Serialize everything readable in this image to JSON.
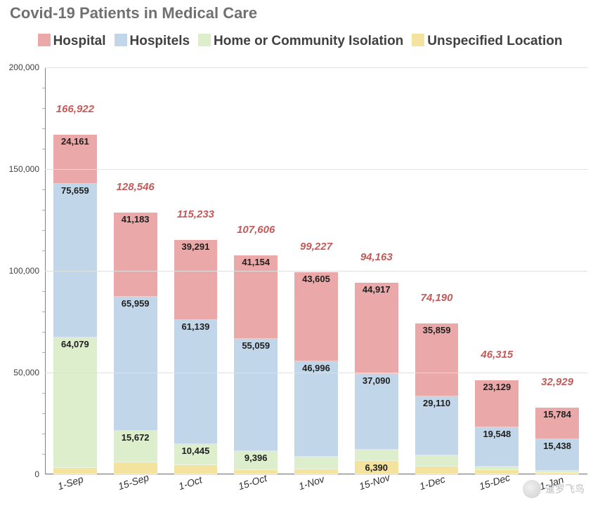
{
  "title": "Covid-19 Patients in Medical Care",
  "title_fontsize": 22,
  "title_color": "#707070",
  "background_color": "#ffffff",
  "grid_color": "#e0e0e0",
  "axis_color": "#808080",
  "label_color": "#404040",
  "chart": {
    "type": "stacked-bar",
    "ylim": [
      0,
      200000
    ],
    "ytick_step": 50000,
    "ytick_minor_step": 10000,
    "tick_fontsize": 12,
    "xlabel_fontsize": 14,
    "seg_label_fontsize": 13,
    "total_label_fontsize": 15,
    "bar_width": 0.72,
    "categories": [
      "1-Sep",
      "15-Sep",
      "1-Oct",
      "15-Oct",
      "1-Nov",
      "15-Nov",
      "1-Dec",
      "15-Dec",
      "1-Jan"
    ],
    "series": [
      {
        "name": "Unspecified Location",
        "color": "#f3e39e",
        "values": [
          3023,
          5732,
          4358,
          1997,
          2523,
          6390,
          3864,
          2032,
          785
        ]
      },
      {
        "name": "Home or Community Isolation",
        "color": "#dceecb",
        "values": [
          64079,
          15672,
          10445,
          9396,
          6103,
          5766,
          5357,
          1606,
          922
        ]
      },
      {
        "name": "Hospitels",
        "color": "#c1d6e8",
        "values": [
          75659,
          65959,
          61139,
          55059,
          46996,
          37090,
          29110,
          19548,
          15438
        ]
      },
      {
        "name": "Hospital",
        "color": "#eaa9a8",
        "values": [
          24161,
          41183,
          39291,
          41154,
          43605,
          44917,
          35859,
          23129,
          15784
        ]
      }
    ],
    "totals": [
      166922,
      128546,
      115233,
      107606,
      99227,
      94163,
      74190,
      46315,
      32929
    ],
    "total_label_color": "#c25b5a",
    "legend_order": [
      "Hospital",
      "Hospitels",
      "Home or Community Isolation",
      "Unspecified Location"
    ]
  },
  "watermark": {
    "text": "暹罗飞鸟"
  }
}
